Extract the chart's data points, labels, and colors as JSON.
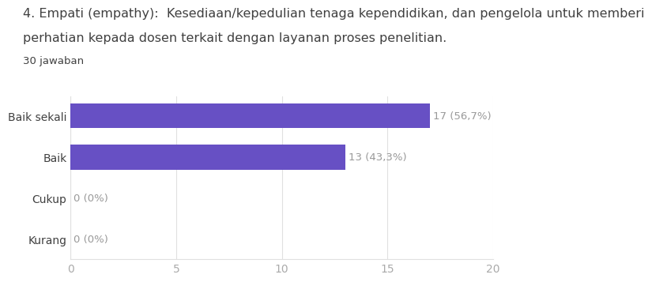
{
  "title_line1": "4. Empati (empathy):  Kesediaan/kepedulian tenaga kependidikan, dan pengelola untuk memberi",
  "title_line2": "perhatian kepada dosen terkait dengan layanan proses penelitian.",
  "subtitle": "30 jawaban",
  "categories": [
    "Baik sekali",
    "Baik",
    "Cukup",
    "Kurang"
  ],
  "values": [
    17,
    13,
    0,
    0
  ],
  "labels": [
    "17 (56,7%)",
    "13 (43,3%)",
    "0 (0%)",
    "0 (0%)"
  ],
  "bar_color": "#6750c4",
  "background_color": "#ffffff",
  "xlim": [
    0,
    20
  ],
  "xticks": [
    0,
    5,
    10,
    15,
    20
  ],
  "title_fontsize": 11.5,
  "subtitle_fontsize": 9.5,
  "label_fontsize": 9.5,
  "tick_fontsize": 10,
  "category_fontsize": 10,
  "grid_color": "#e0e0e0",
  "text_color": "#404040",
  "label_color": "#999999"
}
